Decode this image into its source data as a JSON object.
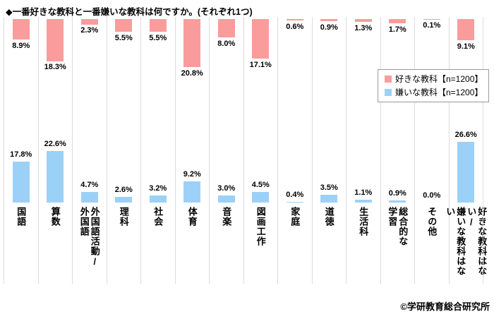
{
  "chart_data": {
    "type": "bar",
    "title": "◆一番好きな教科と一番嫌いな教科は何ですか。(それぞれ1つ)",
    "categories": [
      "国語",
      "算数",
      "外国語活動/\n外国語",
      "理科",
      "社会",
      "体育",
      "音楽",
      "図画工作",
      "家庭",
      "道徳",
      "生活科",
      "総合的な\n学習",
      "その他",
      "好きな教科はない/\n嫌いな教科はない"
    ],
    "series": [
      {
        "name": "好きな教科【n=1200】",
        "color": "#FA9C9C",
        "values": [
          8.9,
          18.3,
          2.3,
          5.5,
          5.5,
          20.8,
          8.0,
          17.1,
          0.6,
          0.9,
          1.3,
          1.7,
          0.1,
          9.1
        ]
      },
      {
        "name": "嫌いな教科【n=1200】",
        "color": "#9CD1F7",
        "values": [
          17.8,
          22.6,
          4.7,
          2.6,
          3.2,
          9.2,
          3.0,
          4.5,
          0.4,
          3.5,
          1.1,
          0.9,
          0.0,
          26.6
        ]
      }
    ],
    "value_suffix": "%",
    "legend_position": "right",
    "grid": "vertical-category-separators"
  },
  "copyright": "©学研教育総合研究所"
}
